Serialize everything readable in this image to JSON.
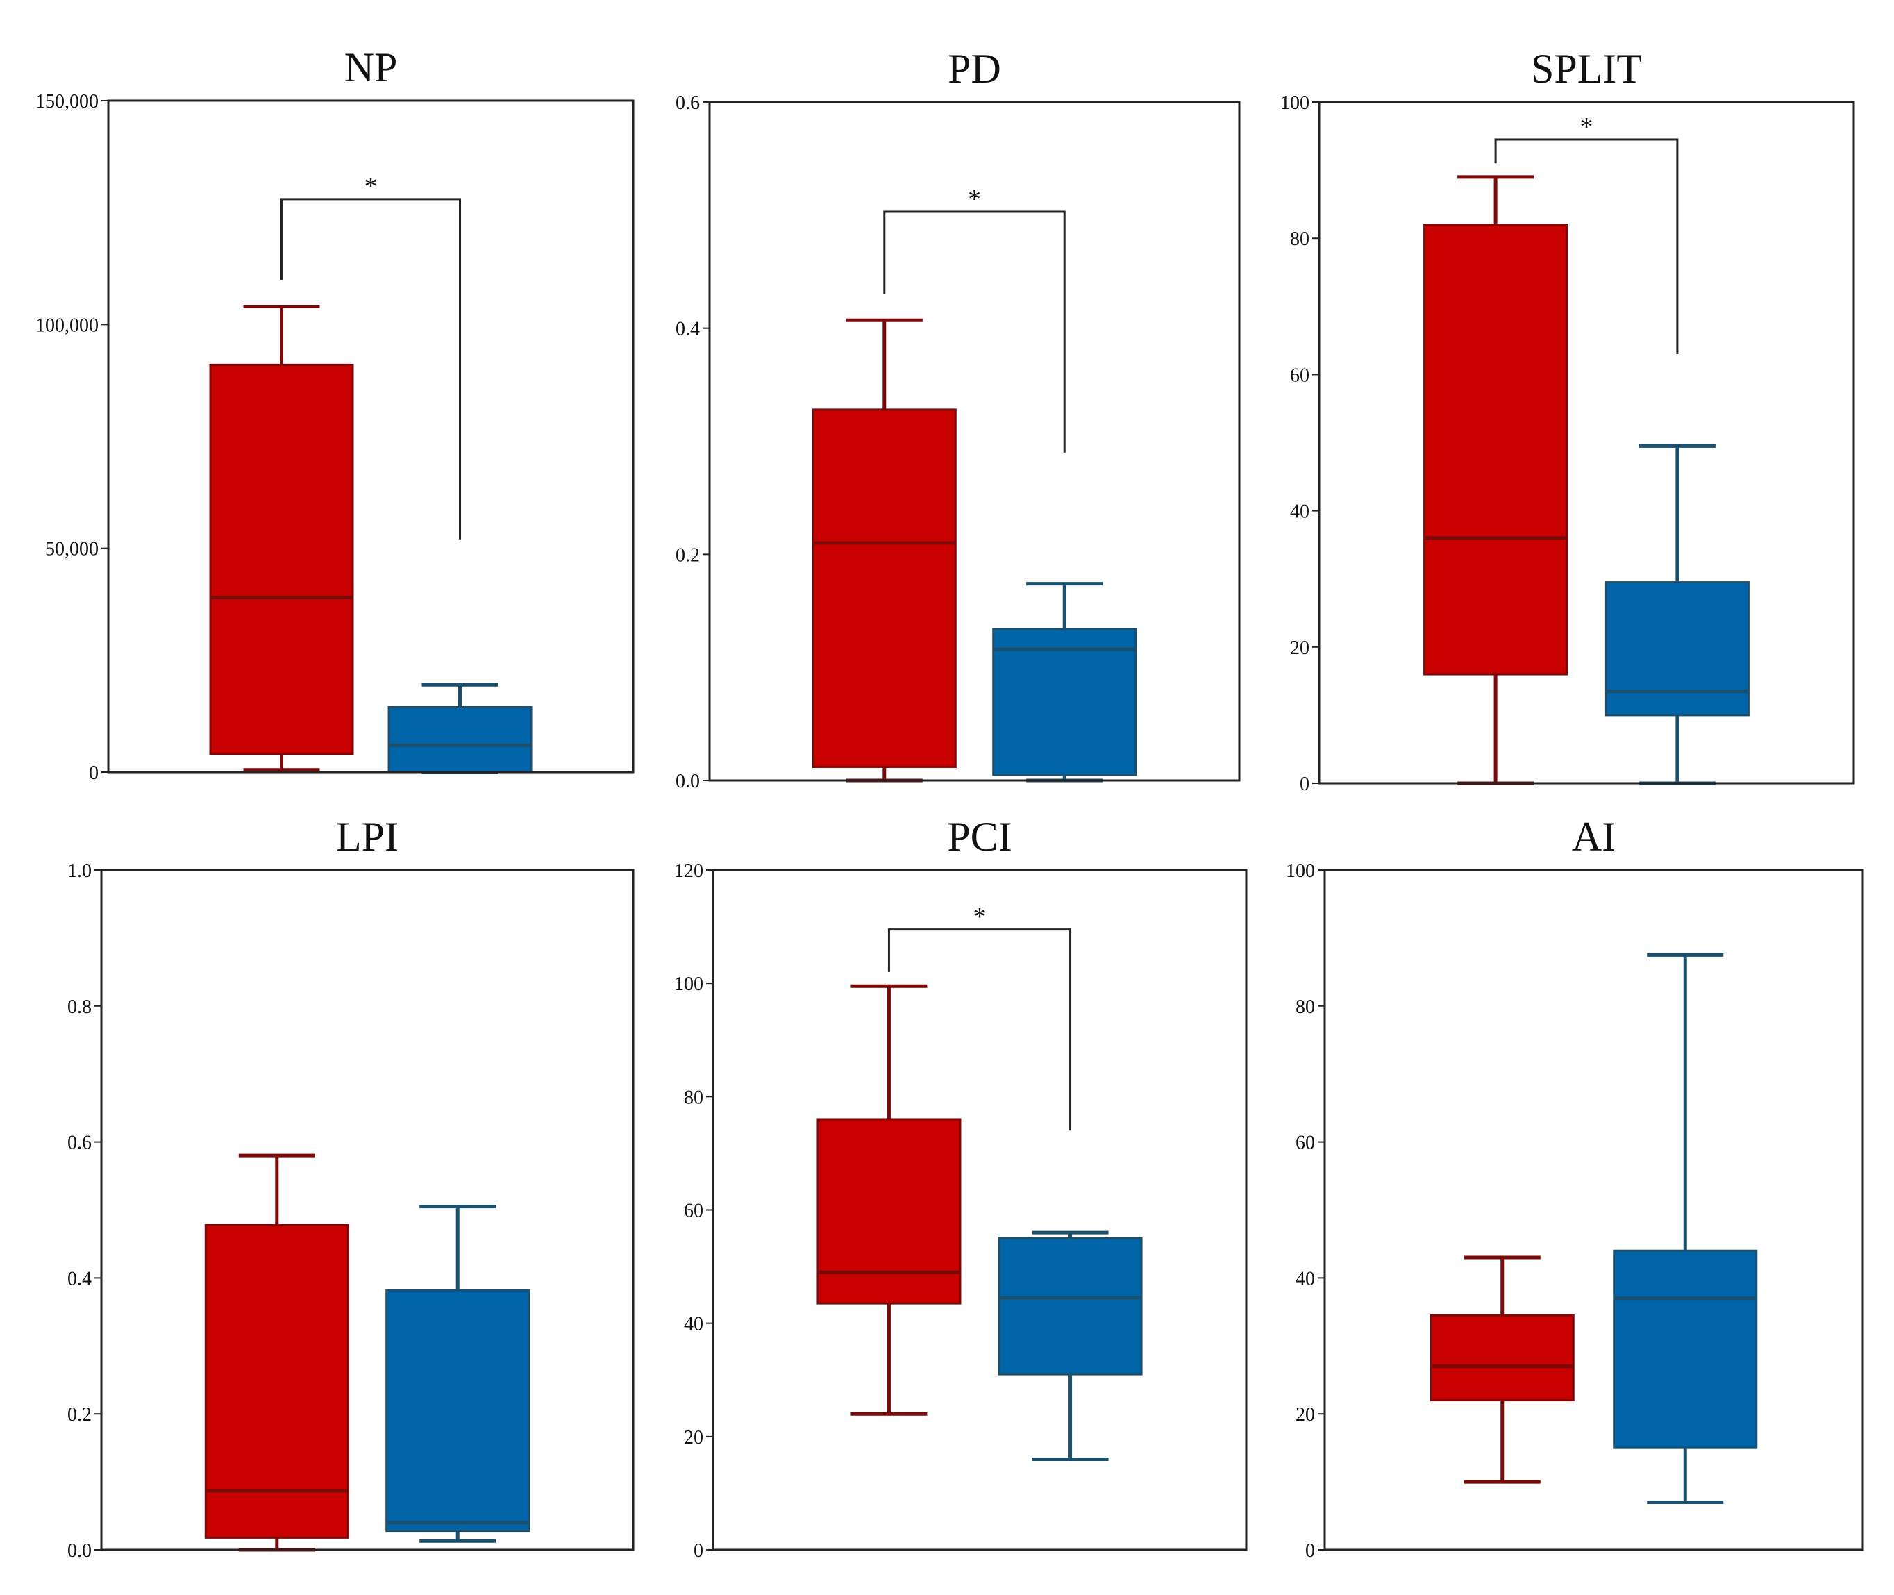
{
  "colors": {
    "group1_fill": "#c80000",
    "group1_line": "#7a0a0a",
    "group2_fill": "#0064a8",
    "group2_line": "#1a4f6e",
    "axis": "#222222",
    "bracket": "#222222"
  },
  "chart_data": [
    {
      "type": "box",
      "title": "NP",
      "ylim": [
        0,
        150000
      ],
      "yticks": [
        0,
        50000,
        100000,
        150000
      ],
      "ytick_labels": [
        "0",
        "50,000",
        "100,000",
        "150,000"
      ],
      "groups": [
        {
          "whisker_low": 500,
          "q1": 4000,
          "median": 39000,
          "q3": 91000,
          "whisker_high": 104000
        },
        {
          "whisker_low": 0,
          "q1": 0,
          "median": 6000,
          "q3": 14500,
          "whisker_high": 19500
        }
      ],
      "significance": {
        "label": "*",
        "top": 128000,
        "left_bottom": 110000,
        "right_bottom": 52000
      }
    },
    {
      "type": "box",
      "title": "PD",
      "ylim": [
        0,
        0.6
      ],
      "yticks": [
        0,
        0.2,
        0.4,
        0.6
      ],
      "ytick_labels": [
        "0.0",
        "0.2",
        "0.4",
        "0.6"
      ],
      "groups": [
        {
          "whisker_low": 0.0,
          "q1": 0.012,
          "median": 0.21,
          "q3": 0.328,
          "whisker_high": 0.407
        },
        {
          "whisker_low": 0.0,
          "q1": 0.005,
          "median": 0.116,
          "q3": 0.134,
          "whisker_high": 0.174
        }
      ],
      "significance": {
        "label": "*",
        "top": 0.503,
        "left_bottom": 0.43,
        "right_bottom": 0.29
      }
    },
    {
      "type": "box",
      "title": "SPLIT",
      "ylim": [
        0,
        100
      ],
      "yticks": [
        0,
        20,
        40,
        60,
        80,
        100
      ],
      "ytick_labels": [
        "0",
        "20",
        "40",
        "60",
        "80",
        "100"
      ],
      "groups": [
        {
          "whisker_low": 0,
          "q1": 16,
          "median": 36,
          "q3": 82,
          "whisker_high": 89
        },
        {
          "whisker_low": 0,
          "q1": 10,
          "median": 13.5,
          "q3": 29.5,
          "whisker_high": 49.5
        }
      ],
      "significance": {
        "label": "*",
        "top": 94.5,
        "left_bottom": 91,
        "right_bottom": 63
      }
    },
    {
      "type": "box",
      "title": "LPI",
      "ylim": [
        0,
        1.0
      ],
      "yticks": [
        0,
        0.2,
        0.4,
        0.6,
        0.8,
        1.0
      ],
      "ytick_labels": [
        "0.0",
        "0.2",
        "0.4",
        "0.6",
        "0.8",
        "1.0"
      ],
      "groups": [
        {
          "whisker_low": 0.0,
          "q1": 0.018,
          "median": 0.087,
          "q3": 0.478,
          "whisker_high": 0.58
        },
        {
          "whisker_low": 0.013,
          "q1": 0.028,
          "median": 0.04,
          "q3": 0.382,
          "whisker_high": 0.505
        }
      ],
      "significance": null
    },
    {
      "type": "box",
      "title": "PCI",
      "ylim": [
        0,
        120
      ],
      "yticks": [
        0,
        20,
        40,
        60,
        80,
        100,
        120
      ],
      "ytick_labels": [
        "0",
        "20",
        "40",
        "60",
        "80",
        "100",
        "120"
      ],
      "groups": [
        {
          "whisker_low": 24,
          "q1": 43.5,
          "median": 49,
          "q3": 76,
          "whisker_high": 99.5
        },
        {
          "whisker_low": 16,
          "q1": 31,
          "median": 44.5,
          "q3": 55,
          "whisker_high": 56
        }
      ],
      "significance": {
        "label": "*",
        "top": 109.5,
        "left_bottom": 102,
        "right_bottom": 74
      }
    },
    {
      "type": "box",
      "title": "AI",
      "ylim": [
        0,
        100
      ],
      "yticks": [
        0,
        20,
        40,
        60,
        80,
        100
      ],
      "ytick_labels": [
        "0",
        "20",
        "40",
        "60",
        "80",
        "100"
      ],
      "groups": [
        {
          "whisker_low": 10,
          "q1": 22,
          "median": 27,
          "q3": 34.5,
          "whisker_high": 43
        },
        {
          "whisker_low": 7,
          "q1": 15,
          "median": 37,
          "q3": 44,
          "whisker_high": 87.5
        }
      ],
      "significance": null
    }
  ]
}
